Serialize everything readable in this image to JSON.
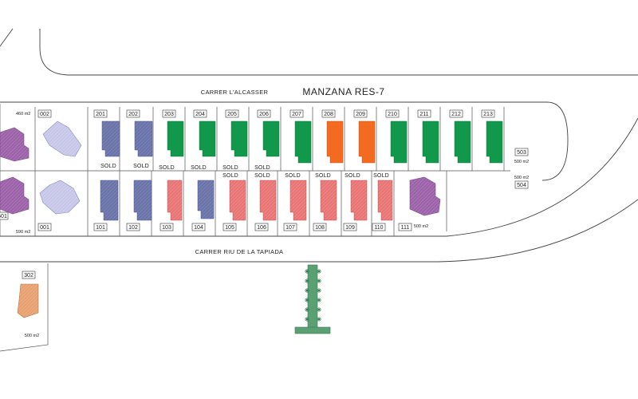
{
  "title": "MANZANA RES-7",
  "streets": {
    "north": "CARRER L'ALCASSER",
    "south": "CARRER RIU DE LA TAPIADA"
  },
  "colors": {
    "sold": "#6b74a8",
    "available": "#12984a",
    "reserved": "#f36b21",
    "pink": "#e87474",
    "purple": "#9b62a8",
    "lavender": "#c6c6e8",
    "tan": "#e7a070",
    "path": "#5aa073"
  },
  "plots": {
    "p002": {
      "number": "002",
      "area": "460 m2"
    },
    "p001": {
      "number": "001",
      "area": "590 m2"
    },
    "p501": {
      "number": "501"
    },
    "p201": {
      "number": "201",
      "status": "SOLD"
    },
    "p202": {
      "number": "202",
      "status": "SOLD"
    },
    "p203": {
      "number": "203",
      "status": "SOLD"
    },
    "p204": {
      "number": "204",
      "status": "SOLD"
    },
    "p205": {
      "number": "205",
      "status": "SOLD"
    },
    "p206": {
      "number": "206",
      "status": "SOLD"
    },
    "p207": {
      "number": "207"
    },
    "p208": {
      "number": "208"
    },
    "p209": {
      "number": "209"
    },
    "p210": {
      "number": "210"
    },
    "p211": {
      "number": "211"
    },
    "p212": {
      "number": "212"
    },
    "p213": {
      "number": "213"
    },
    "p503": {
      "number": "503",
      "area": "500 m2"
    },
    "p504": {
      "number": "504",
      "area": "500 m2"
    },
    "p101": {
      "number": "101"
    },
    "p102": {
      "number": "102"
    },
    "p103": {
      "number": "103"
    },
    "p104": {
      "number": "104"
    },
    "p105": {
      "number": "105",
      "status": "SOLD"
    },
    "p106": {
      "number": "106",
      "status": "SOLD"
    },
    "p107": {
      "number": "107",
      "status": "SOLD"
    },
    "p108": {
      "number": "108",
      "status": "SOLD"
    },
    "p109": {
      "number": "109",
      "status": "SOLD"
    },
    "p110": {
      "number": "110",
      "status": "SOLD"
    },
    "p111": {
      "number": "111",
      "area": "500 m2"
    },
    "p302": {
      "number": "302",
      "area": "500 m2"
    }
  }
}
